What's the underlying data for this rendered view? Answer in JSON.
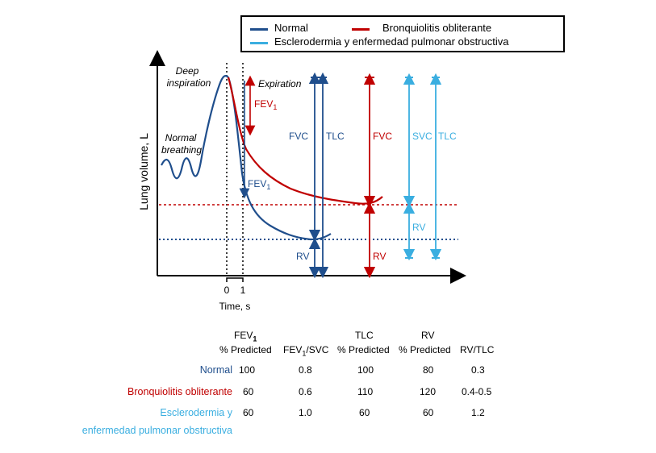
{
  "colors": {
    "normal": "#1f4e8c",
    "bronq": "#c00000",
    "escl": "#3aaee0",
    "axis": "#000000"
  },
  "legend": {
    "normal": "Normal",
    "bronq": "Bronquiolitis obliterante",
    "escl": "Esclerodermia y enfermedad pulmonar obstructiva"
  },
  "diagram": {
    "y_axis_label": "Lung volume, L",
    "x_axis_label": "Time, s",
    "tick_0": "0",
    "tick_1": "1",
    "deep_inspiration_1": "Deep",
    "deep_inspiration_2": "inspiration",
    "expiration": "Expiration",
    "normal_breathing_1": "Normal",
    "normal_breathing_2": "breathing",
    "fev1_red": "FEV",
    "fev1_blue": "FEV",
    "sub_1": "1",
    "fvc_normal": "FVC",
    "tlc_normal": "TLC",
    "fvc_bronq": "FVC",
    "svc_escl": "SVC",
    "tlc_escl": "TLC",
    "rv_normal": "RV",
    "rv_bronq": "RV",
    "rv_escl": "RV"
  },
  "table": {
    "headers": {
      "fev1_line1": "FEV",
      "fev1_sub": "1",
      "fev1_line2": "% Predicted",
      "ratio_a": "FEV",
      "ratio_sub": "1",
      "ratio_b": "/SVC",
      "tlc_line1": "TLC",
      "tlc_line2": "% Predicted",
      "rv_line1": "RV",
      "rv_line2": "% Predicted",
      "rvtlc": "RV/TLC"
    },
    "rows": [
      {
        "label": "Normal",
        "label2": "",
        "fev1": "100",
        "ratio": "0.8",
        "tlc": "100",
        "rv": "80",
        "rvtlc": "0.3"
      },
      {
        "label": "Bronquiolitis obliterante",
        "label2": "",
        "fev1": "60",
        "ratio": "0.6",
        "tlc": "110",
        "rv": "120",
        "rvtlc": "0.4-0.5"
      },
      {
        "label": "Esclerodermia y",
        "label2": "enfermedad pulmonar obstructiva",
        "fev1": "60",
        "ratio": "1.0",
        "tlc": "60",
        "rv": "60",
        "rvtlc": "1.2"
      }
    ]
  }
}
